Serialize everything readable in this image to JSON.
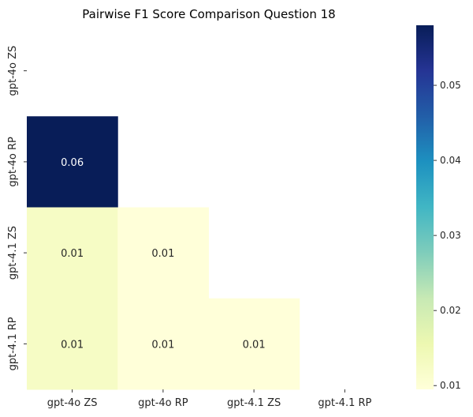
{
  "chart_data": {
    "type": "heatmap",
    "title": "Pairwise F1 Score Comparison Question 18",
    "x_categories": [
      "gpt-4o ZS",
      "gpt-4o RP",
      "gpt-4.1 ZS",
      "gpt-4.1 RP"
    ],
    "y_categories": [
      "gpt-4o ZS",
      "gpt-4o RP",
      "gpt-4.1 ZS",
      "gpt-4.1 RP"
    ],
    "mask": "upper-triangle-including-diagonal",
    "cells": [
      {
        "row": 1,
        "col": 0,
        "value": 0.058,
        "label": "0.06"
      },
      {
        "row": 2,
        "col": 0,
        "value": 0.0125,
        "label": "0.01"
      },
      {
        "row": 2,
        "col": 1,
        "value": 0.0095,
        "label": "0.01"
      },
      {
        "row": 3,
        "col": 0,
        "value": 0.0125,
        "label": "0.01"
      },
      {
        "row": 3,
        "col": 1,
        "value": 0.0095,
        "label": "0.01"
      },
      {
        "row": 3,
        "col": 2,
        "value": 0.0095,
        "label": "0.01"
      }
    ],
    "colorbar": {
      "colormap": "YlGnBu",
      "range": [
        0.0095,
        0.058
      ],
      "ticks": [
        0.01,
        0.02,
        0.03,
        0.04,
        0.05
      ],
      "tick_labels": [
        "0.01",
        "0.02",
        "0.03",
        "0.04",
        "0.05"
      ]
    }
  }
}
